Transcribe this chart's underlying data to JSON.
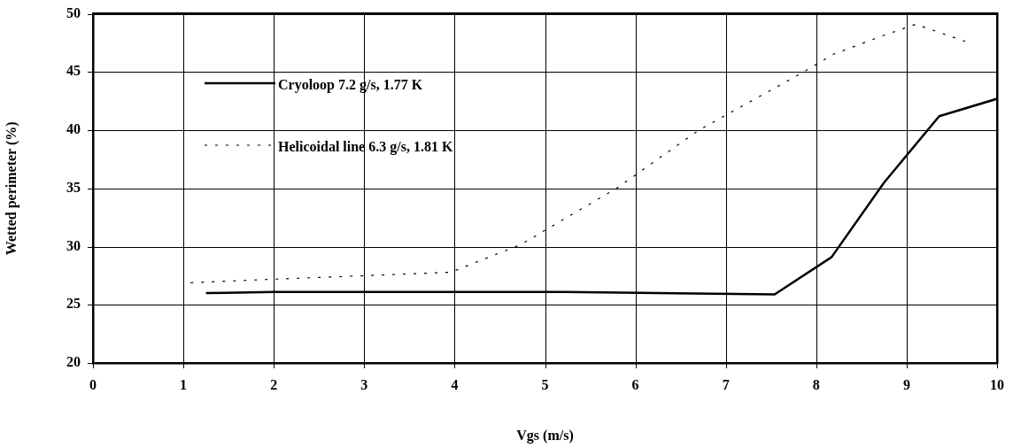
{
  "chart_data": {
    "type": "line",
    "xlabel": "Vgs (m/s)",
    "ylabel": "Wetted perimeter (%)",
    "xlim": [
      0,
      10
    ],
    "xticks": [
      0,
      1,
      2,
      3,
      4,
      5,
      6,
      7,
      8,
      9,
      10
    ],
    "ylim": [
      20,
      50
    ],
    "yticks": [
      20,
      25,
      30,
      35,
      40,
      45,
      50
    ],
    "grid": true,
    "legend": "top left",
    "marker": "none",
    "series": [
      {
        "name": "Cryoloop 7.2 g/s, 1.77 K",
        "color": "#000000",
        "line_style": "solid",
        "x": [
          1.25,
          2,
          5.21,
          7.54,
          8.17,
          8.75,
          9.36,
          10
        ],
        "values": [
          26.0,
          26.1,
          26.1,
          25.9,
          29.1,
          35.5,
          41.2,
          42.7
        ]
      },
      {
        "name": "Helicoidal line 6.3 g/s, 1.81 K",
        "color": "#000000",
        "line_style": "dotted",
        "x": [
          1.08,
          2,
          3,
          3.96,
          4.74,
          5.13,
          5.79,
          6.7,
          7.86,
          8.18,
          8.73,
          9.1,
          9.66
        ],
        "values": [
          26.9,
          27.2,
          27.5,
          27.8,
          30.2,
          32.0,
          35.0,
          40.0,
          45.0,
          46.5,
          48.1,
          49.1,
          47.6
        ]
      }
    ]
  }
}
